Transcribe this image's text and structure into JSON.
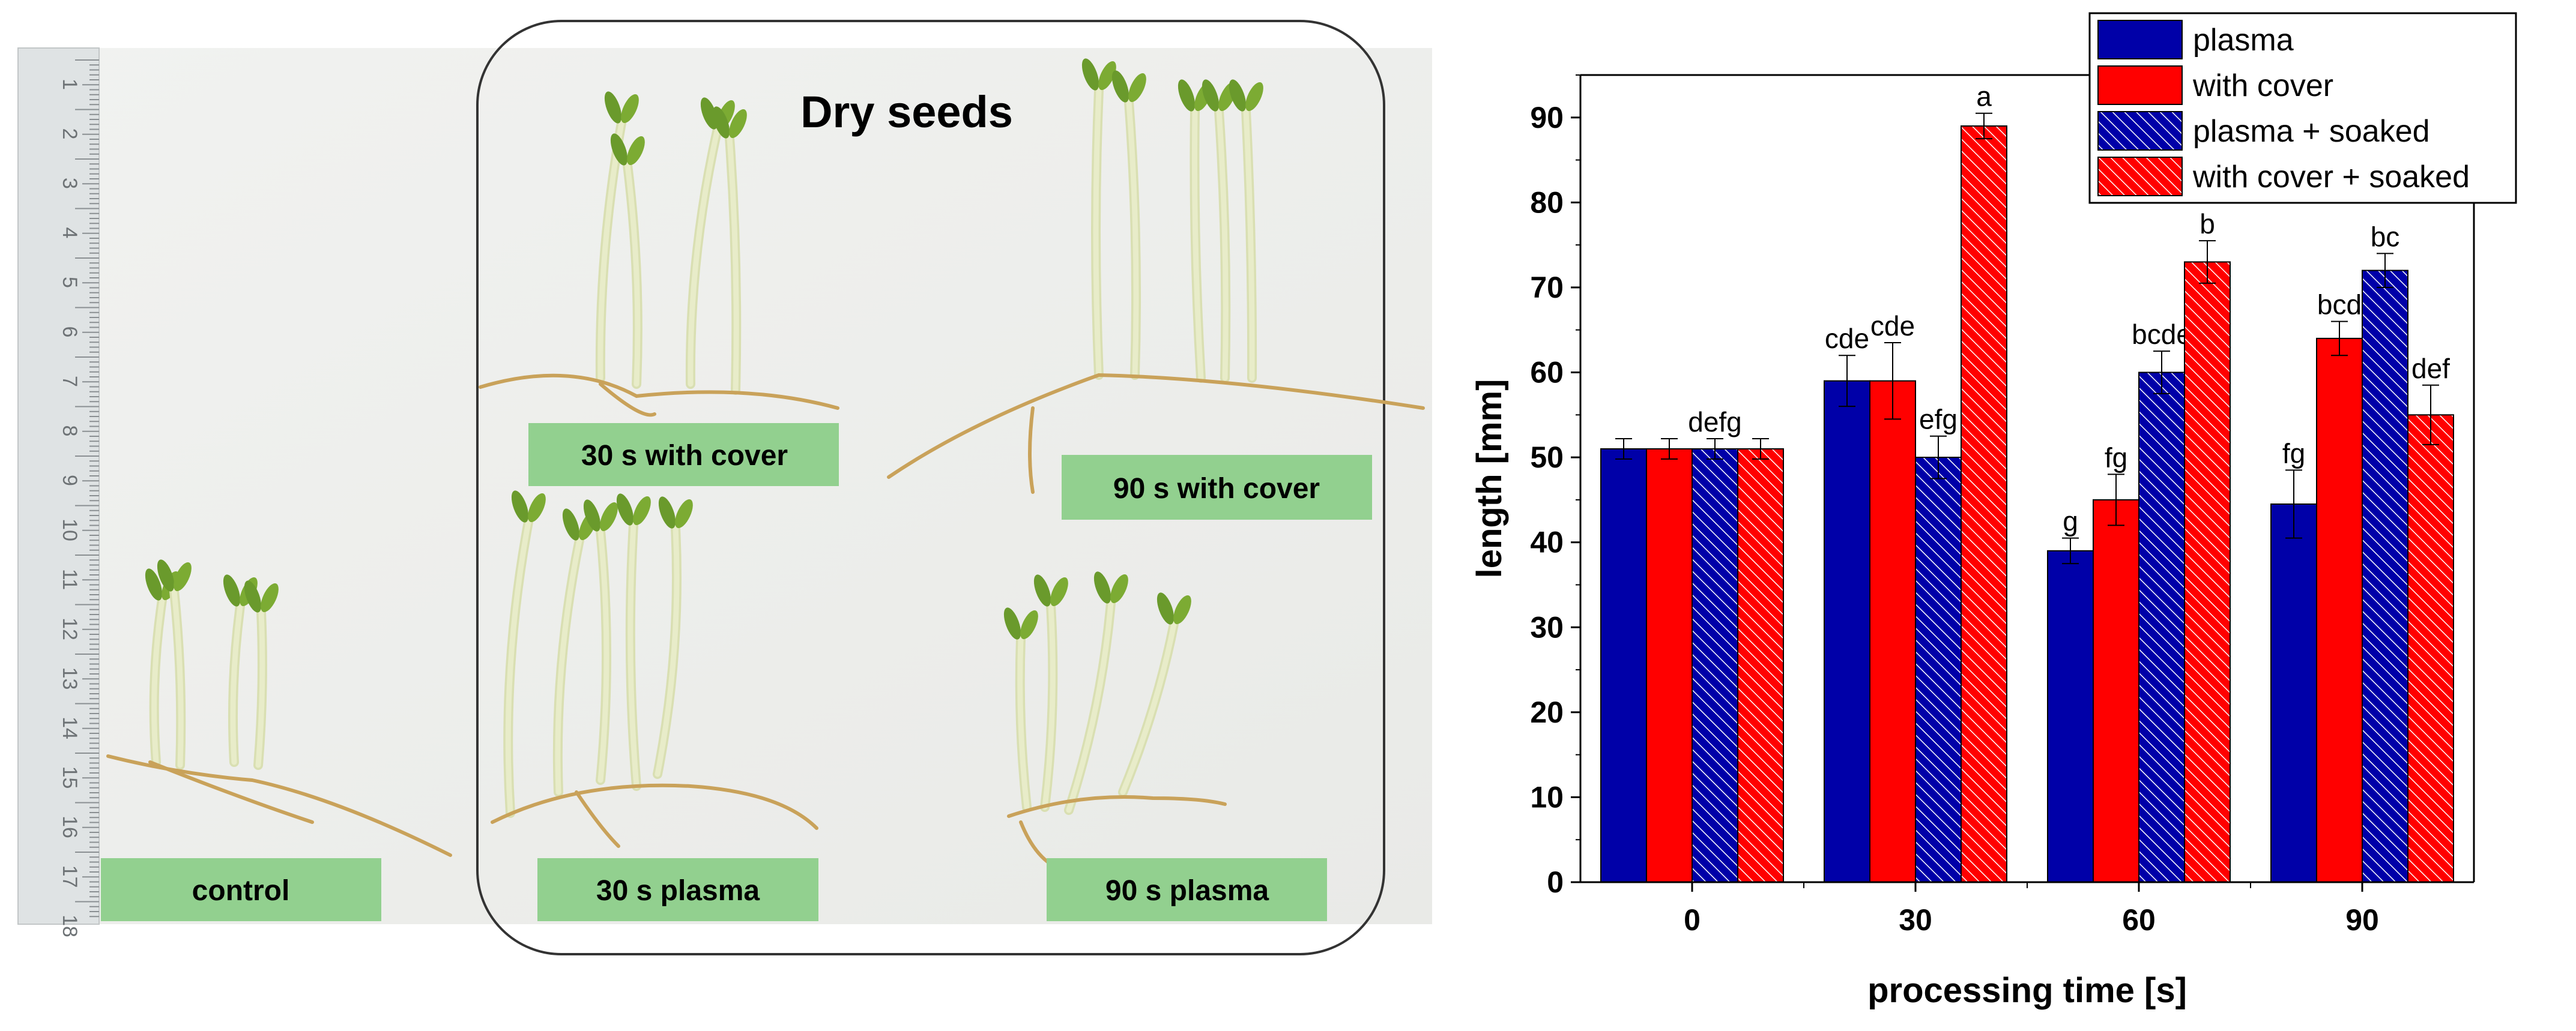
{
  "photo": {
    "panel_title": "Dry seeds",
    "labels": {
      "control": "control",
      "s30_cover": "30 s with cover",
      "s90_cover": "90 s with cover",
      "s30_plasma": "30 s plasma",
      "s90_plasma": "90 s plasma"
    },
    "ruler_numbers": [
      "1",
      "2",
      "3",
      "4",
      "5",
      "6",
      "7",
      "8",
      "9",
      "10",
      "11",
      "12",
      "13",
      "14",
      "15",
      "16",
      "17",
      "18"
    ],
    "colors": {
      "label_bg": "#92d08f",
      "leaf": "#6a9a2c",
      "stem": "#e8ecc9",
      "root": "#c9a25a"
    }
  },
  "chart_data": {
    "type": "bar",
    "categories": [
      "0",
      "30",
      "60",
      "90"
    ],
    "series": [
      {
        "name": "plasma",
        "color": "#0000a8",
        "hatched": false,
        "values": [
          51,
          59,
          39,
          44.5
        ],
        "errors": [
          1.2,
          3,
          1.5,
          4
        ],
        "labels": [
          "",
          "cde",
          "g",
          "fg"
        ]
      },
      {
        "name": "with cover",
        "color": "#ff0000",
        "hatched": false,
        "values": [
          51,
          59,
          45,
          64
        ],
        "errors": [
          1.2,
          4.5,
          3,
          2
        ],
        "labels": [
          "",
          "cde",
          "fg",
          "bcd"
        ]
      },
      {
        "name": "plasma + soaked",
        "color": "#0000a8",
        "hatched": true,
        "values": [
          51,
          50,
          60,
          72
        ],
        "errors": [
          1.2,
          2.5,
          2.5,
          2
        ],
        "labels": [
          "defg",
          "efg",
          "bcde",
          "bc"
        ]
      },
      {
        "name": "with cover + soaked",
        "color": "#ff0000",
        "hatched": true,
        "values": [
          51,
          89,
          73,
          55
        ],
        "errors": [
          1.2,
          1.5,
          2.5,
          3.5
        ],
        "labels": [
          "",
          "a",
          "b",
          "def"
        ]
      }
    ],
    "xlabel": "processing time [s]",
    "ylabel": "length [mm]",
    "ylim": [
      0,
      95
    ],
    "yticks": [
      "0",
      "10",
      "20",
      "30",
      "40",
      "50",
      "60",
      "70",
      "80",
      "90"
    ],
    "legend_position": "top-right",
    "grid": false
  }
}
